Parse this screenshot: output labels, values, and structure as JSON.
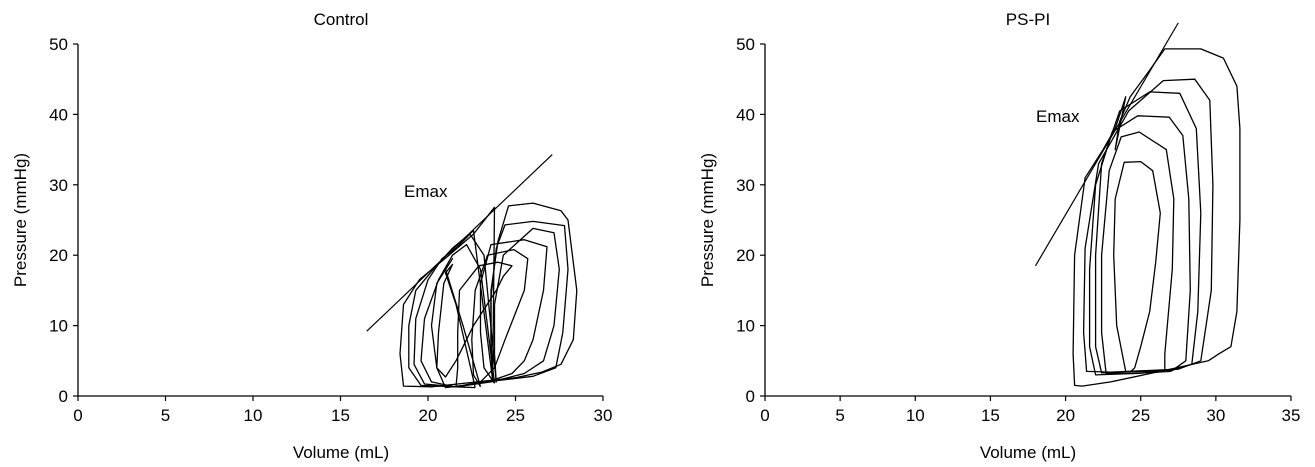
{
  "chart_data": [
    {
      "type": "line",
      "title": "Control",
      "xlabel": "Volume (mL)",
      "ylabel": "Pressure (mmHg)",
      "xlim": [
        0,
        30
      ],
      "ylim": [
        0,
        50
      ],
      "xticks": [
        0,
        5,
        10,
        15,
        20,
        25,
        30
      ],
      "yticks": [
        0,
        10,
        20,
        30,
        40,
        50
      ],
      "grid": false,
      "emax": {
        "label": "Emax",
        "x": [
          16.5,
          27.1
        ],
        "y": [
          9.2,
          34.3
        ]
      },
      "series": [
        {
          "x": [
            22.7,
            21.6,
            21.7,
            21.7,
            21.8,
            22.9,
            24.0,
            24.8,
            24.3,
            23.9,
            22.6,
            21.6,
            21.0,
            20.5,
            20.6,
            20.9,
            21.4,
            21.0,
            21.6,
            22.7
          ],
          "y": [
            1.2,
            1.3,
            4.0,
            9.0,
            15.0,
            18.5,
            19.0,
            18.5,
            17.0,
            15.0,
            10.0,
            5.0,
            2.7,
            4.0,
            9.0,
            16.0,
            18.7,
            17.5,
            13.0,
            1.2
          ]
        },
        {
          "x": [
            23.0,
            22.6,
            22.5,
            22.7,
            23.4,
            24.9,
            25.7,
            25.5,
            24.4,
            23.8,
            23.0,
            22.0,
            21.0,
            20.5,
            20.2,
            20.5,
            21.4,
            21.0,
            22.0,
            23.0
          ],
          "y": [
            1.3,
            3.0,
            8.0,
            15.0,
            20.0,
            20.8,
            19.5,
            15.0,
            8.0,
            4.0,
            2.0,
            1.5,
            1.2,
            4.0,
            10.0,
            16.0,
            19.5,
            18.0,
            10.0,
            1.3
          ]
        },
        {
          "x": [
            23.8,
            23.2,
            23.0,
            23.0,
            23.6,
            25.5,
            26.8,
            26.6,
            26.0,
            25.5,
            24.8,
            23.4,
            21.5,
            20.2,
            19.6,
            19.8,
            20.6,
            21.4,
            22.2,
            23.0,
            23.8
          ],
          "y": [
            1.8,
            4.0,
            9.0,
            16.0,
            21.5,
            22.2,
            21.2,
            15.0,
            8.0,
            5.0,
            3.2,
            2.0,
            1.3,
            2.0,
            5.0,
            11.0,
            16.5,
            20.0,
            21.5,
            18.0,
            1.8
          ]
        },
        {
          "x": [
            23.9,
            23.8,
            23.8,
            24.3,
            26.0,
            27.2,
            27.5,
            27.2,
            26.6,
            25.5,
            23.6,
            21.6,
            19.8,
            19.2,
            19.3,
            20.0,
            20.8,
            21.6,
            22.4,
            23.2,
            23.9
          ],
          "y": [
            1.9,
            6.0,
            13.0,
            20.0,
            23.8,
            23.2,
            18.0,
            10.0,
            5.0,
            3.2,
            2.0,
            1.3,
            1.7,
            4.5,
            11.0,
            16.5,
            19.5,
            21.0,
            23.0,
            20.0,
            1.9
          ]
        },
        {
          "x": [
            23.7,
            23.6,
            23.6,
            23.9,
            24.4,
            26.0,
            27.8,
            28.0,
            27.7,
            27.3,
            26.0,
            24.0,
            21.6,
            19.6,
            18.9,
            18.9,
            19.3,
            20.3,
            21.4,
            22.6,
            23.7
          ],
          "y": [
            2.2,
            7.0,
            14.0,
            21.0,
            24.3,
            24.8,
            24.2,
            18.0,
            9.0,
            4.0,
            2.8,
            2.2,
            1.3,
            1.5,
            4.0,
            10.0,
            15.0,
            18.0,
            21.0,
            23.5,
            2.2
          ]
        },
        {
          "x": [
            23.7,
            23.6,
            23.6,
            24.0,
            24.6,
            26.0,
            27.6,
            28.0,
            28.5,
            28.3,
            27.6,
            26.5,
            25.0,
            22.8,
            20.2,
            18.6,
            18.4,
            18.6,
            19.5,
            21.2,
            22.6,
            23.8,
            23.7
          ],
          "y": [
            2.4,
            8.0,
            15.0,
            22.0,
            27.0,
            27.4,
            26.3,
            25.0,
            15.0,
            8.0,
            4.5,
            3.4,
            2.6,
            2.0,
            1.3,
            1.4,
            6.0,
            13.0,
            16.5,
            20.0,
            23.0,
            26.8,
            2.4
          ]
        }
      ]
    },
    {
      "type": "line",
      "title": "PS-PI",
      "xlabel": "Volume (mL)",
      "ylabel": "Pressure (mmHg)",
      "xlim": [
        0,
        35
      ],
      "ylim": [
        0,
        50
      ],
      "xticks": [
        0,
        5,
        10,
        15,
        20,
        25,
        30,
        35
      ],
      "yticks": [
        0,
        10,
        20,
        30,
        40,
        50
      ],
      "grid": false,
      "emax": {
        "label": "Emax",
        "x": [
          18.0,
          27.5
        ],
        "y": [
          18.5,
          53.0
        ]
      },
      "series": [
        {
          "x": [
            24.0,
            23.4,
            23.2,
            23.3,
            23.9,
            25.0,
            25.8,
            26.3,
            26.0,
            25.6,
            25.0,
            24.6,
            24.3,
            24.0
          ],
          "y": [
            3.5,
            10.0,
            20.0,
            28.0,
            33.2,
            33.3,
            32.0,
            26.0,
            19.0,
            12.0,
            7.0,
            4.0,
            3.4,
            3.5
          ]
        },
        {
          "x": [
            26.6,
            24.7,
            22.7,
            22.4,
            22.4,
            22.9,
            23.7,
            24.9,
            26.7,
            27.2,
            27.1,
            26.6,
            26.6
          ],
          "y": [
            3.5,
            3.2,
            3.2,
            9.0,
            20.0,
            32.0,
            36.8,
            37.5,
            35.0,
            28.0,
            18.0,
            6.0,
            3.5
          ]
        },
        {
          "x": [
            27.0,
            24.5,
            22.0,
            21.6,
            21.6,
            22.0,
            23.1,
            24.8,
            26.9,
            27.8,
            28.2,
            28.3,
            28.0,
            27.0
          ],
          "y": [
            3.5,
            3.2,
            3.0,
            7.0,
            18.0,
            30.0,
            37.5,
            39.8,
            39.6,
            37.0,
            28.0,
            15.0,
            5.0,
            3.5
          ]
        },
        {
          "x": [
            27.0,
            22.4,
            22.0,
            22.0,
            22.4,
            23.6,
            25.6,
            27.6,
            28.7,
            29.0,
            28.8,
            28.4,
            27.0
          ],
          "y": [
            3.6,
            3.3,
            7.0,
            20.0,
            33.0,
            40.5,
            43.2,
            43.0,
            38.0,
            26.0,
            12.0,
            4.5,
            3.6
          ]
        },
        {
          "x": [
            27.5,
            23.0,
            21.4,
            21.2,
            21.3,
            22.2,
            24.2,
            26.5,
            28.6,
            29.6,
            29.8,
            29.7,
            29.0,
            27.5
          ],
          "y": [
            3.8,
            3.4,
            3.5,
            9.0,
            21.0,
            33.0,
            40.5,
            44.8,
            45.0,
            42.0,
            30.0,
            15.0,
            5.0,
            3.8
          ]
        },
        {
          "x": [
            29.5,
            26.5,
            23.0,
            21.1,
            20.6,
            20.5,
            20.6,
            21.3,
            22.5,
            23.3,
            24.0,
            23.3,
            23.6,
            24.3,
            25.5,
            26.6,
            29.0,
            30.5,
            31.4,
            31.6,
            31.6,
            31.4,
            31.0,
            30.2,
            29.5
          ],
          "y": [
            5.0,
            3.6,
            2.0,
            1.4,
            1.5,
            6.0,
            20.0,
            31.0,
            35.0,
            38.0,
            42.5,
            35.0,
            39.0,
            42.5,
            46.0,
            49.3,
            49.3,
            48.0,
            44.0,
            38.0,
            25.0,
            12.0,
            7.0,
            6.0,
            5.0
          ]
        }
      ]
    }
  ]
}
